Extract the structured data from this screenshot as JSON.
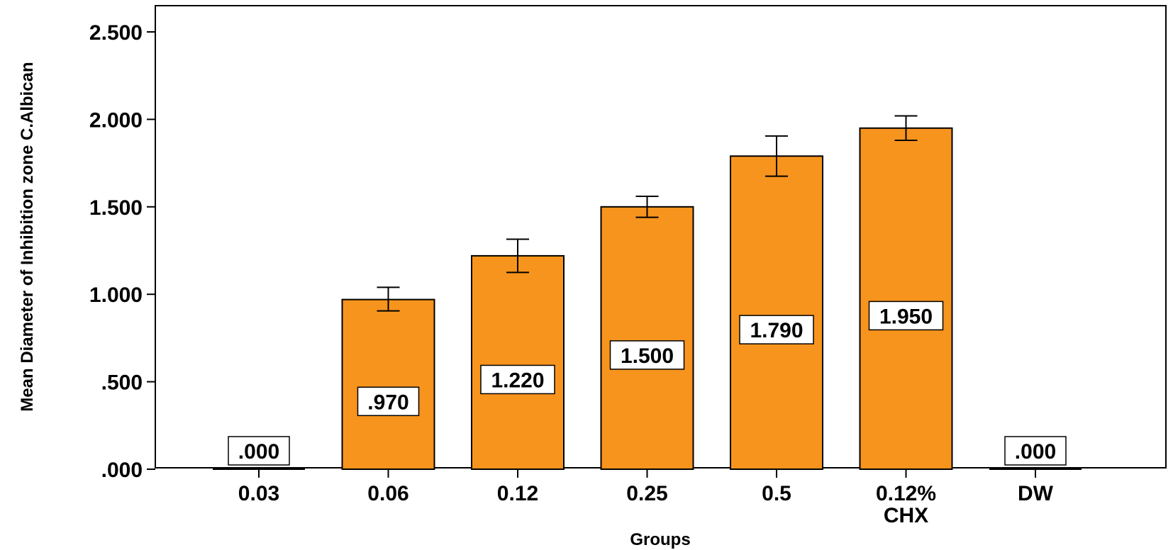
{
  "chart_data": {
    "type": "bar",
    "title": "",
    "xlabel": "Groups",
    "ylabel": "Mean Diameter of Inhibition zone C.Albican",
    "ylim": [
      0,
      2.65
    ],
    "yticks": [
      0,
      0.5,
      1.0,
      1.5,
      2.0,
      2.5
    ],
    "ytick_labels": [
      ".000",
      ".500",
      "1.000",
      "1.500",
      "2.000",
      "2.500"
    ],
    "categories": [
      [
        "0.03"
      ],
      [
        "0.06"
      ],
      [
        "0.12"
      ],
      [
        "0.25"
      ],
      [
        "0.5"
      ],
      [
        "0.12%",
        "CHX"
      ],
      [
        "DW"
      ]
    ],
    "values": [
      0.0,
      0.97,
      1.22,
      1.5,
      1.79,
      1.95,
      0.0
    ],
    "value_labels": [
      ".000",
      ".970",
      "1.220",
      "1.500",
      "1.790",
      "1.950",
      ".000"
    ],
    "error_bars": [
      [
        0.0,
        0.0
      ],
      [
        0.905,
        1.04
      ],
      [
        1.125,
        1.315
      ],
      [
        1.44,
        1.56
      ],
      [
        1.675,
        1.905
      ],
      [
        1.88,
        2.02
      ],
      [
        0.0,
        0.0
      ]
    ],
    "bar_color": "#F7941D",
    "grid": false,
    "legend": "none"
  }
}
